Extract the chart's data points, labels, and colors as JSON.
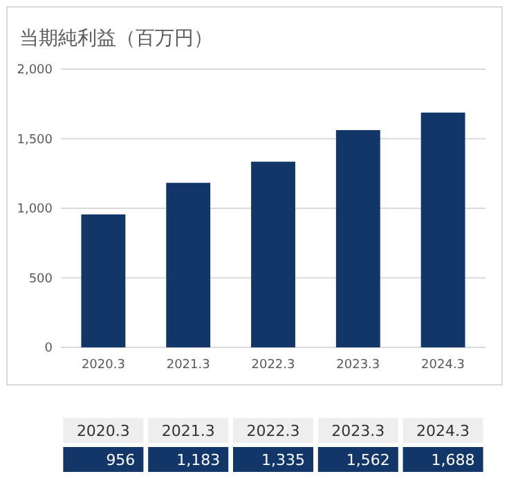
{
  "chart_data": {
    "type": "bar",
    "title": "当期純利益（百万円）",
    "categories": [
      "2020.3",
      "2021.3",
      "2022.3",
      "2023.3",
      "2024.3"
    ],
    "values": [
      956,
      1183,
      1335,
      1562,
      1688
    ],
    "color": "#123668",
    "ylim": [
      0,
      2000
    ],
    "yticks": [
      0,
      {
        "value": 500,
        "label": "500"
      },
      {
        "value": 1000,
        "label": "1,000"
      },
      {
        "value": 1500,
        "label": "1,500"
      },
      {
        "value": 2000,
        "label": "2,000"
      }
    ],
    "grid": "y",
    "value_labels": [
      "956",
      "1,183",
      "1,335",
      "1,562",
      "1,688"
    ]
  }
}
